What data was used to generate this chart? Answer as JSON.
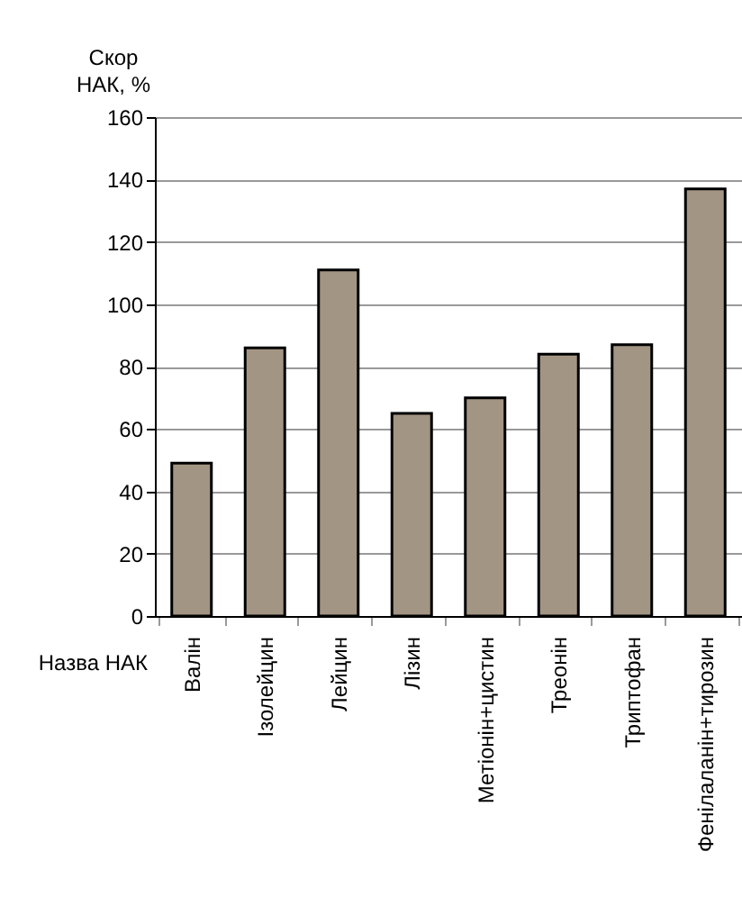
{
  "chart_data": {
    "type": "bar",
    "ylabel": "Скор\nНАК, %",
    "xlabel": "Назва НАК",
    "categories": [
      "Валін",
      "Ізолейцин",
      "Лейцин",
      "Лізин",
      "Метіонін+цистин",
      "Треонін",
      "Триптофан",
      "Фенілаланін+тирозин"
    ],
    "values": [
      49,
      86,
      111,
      65,
      70,
      84,
      87,
      137
    ],
    "color": "#a39584",
    "ylim": [
      0,
      160
    ],
    "yticks": [
      0,
      20,
      40,
      60,
      80,
      100,
      120,
      140,
      160
    ],
    "grid": "y"
  }
}
